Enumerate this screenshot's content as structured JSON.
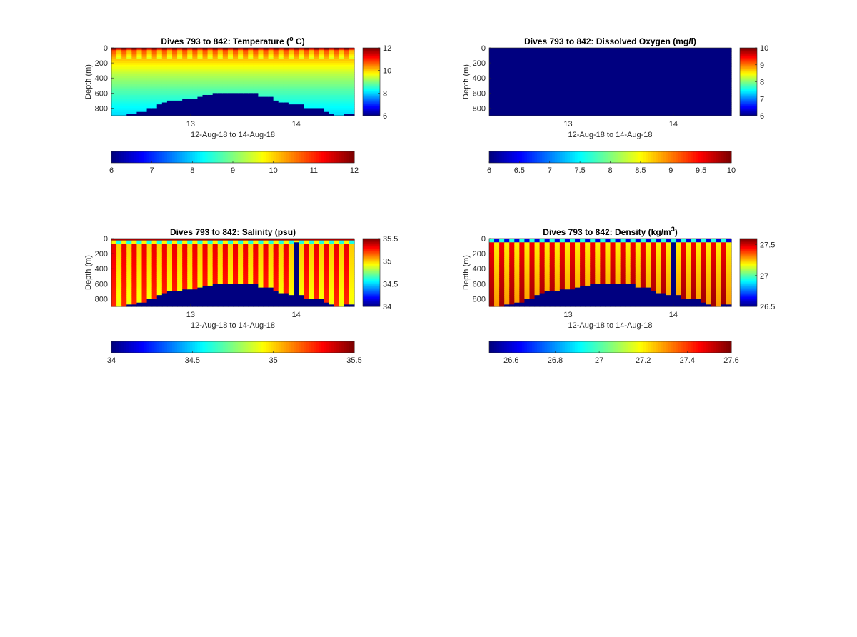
{
  "chart_data": [
    {
      "type": "heatmap",
      "variable": "temperature",
      "title_prefix": "Dives 793 to 842: Temperature (",
      "title_super": "o",
      "title_suffix": " C)",
      "xlabel": "12-Aug-18 to 14-Aug-18",
      "ylabel": "Depth (m)",
      "xlim": [
        12.25,
        14.55
      ],
      "x_ticks": [
        13,
        14
      ],
      "x_tick_labels": [
        "13",
        "14"
      ],
      "ylim": [
        0,
        900
      ],
      "y_ticks": [
        0,
        200,
        400,
        600,
        800
      ],
      "y_tick_labels": [
        "0",
        "200",
        "400",
        "600",
        "800"
      ],
      "clim": [
        6,
        12
      ],
      "side_colorbar_ticks": [
        "6",
        "8",
        "10",
        "12"
      ],
      "bottom_colorbar_ticks": [
        "6",
        "7",
        "8",
        "9",
        "10",
        "11",
        "12"
      ],
      "bottom_depth_m": [
        900,
        900,
        880,
        860,
        850,
        800,
        760,
        720,
        700,
        690,
        680,
        680,
        660,
        620,
        600,
        600,
        600,
        600,
        600,
        600,
        600,
        640,
        660,
        700,
        720,
        740,
        760,
        790,
        800,
        810,
        860,
        880,
        890,
        880,
        870
      ],
      "surface_value": 11.5,
      "deep_value": 8.0
    },
    {
      "type": "heatmap",
      "variable": "oxygen",
      "title_prefix": "Dives 793 to 842: Dissolved Oxygen (mg/l)",
      "title_super": "",
      "title_suffix": "",
      "xlabel": "12-Aug-18 to 14-Aug-18",
      "ylabel": "Depth (m)",
      "xlim": [
        12.25,
        14.55
      ],
      "x_ticks": [
        13,
        14
      ],
      "x_tick_labels": [
        "13",
        "14"
      ],
      "ylim": [
        0,
        900
      ],
      "y_ticks": [
        0,
        200,
        400,
        600,
        800
      ],
      "y_tick_labels": [
        "0",
        "200",
        "400",
        "600",
        "800"
      ],
      "clim": [
        6,
        10
      ],
      "side_colorbar_ticks": [
        "6",
        "7",
        "8",
        "9",
        "10"
      ],
      "bottom_colorbar_ticks": [
        "6",
        "6.5",
        "7",
        "7.5",
        "8",
        "8.5",
        "9",
        "9.5",
        "10"
      ],
      "uniform_value": 6.0
    },
    {
      "type": "heatmap",
      "variable": "salinity",
      "title_prefix": "Dives 793 to 842: Salinity (psu)",
      "title_super": "",
      "title_suffix": "",
      "xlabel": "12-Aug-18 to 14-Aug-18",
      "ylabel": "Depth (m)",
      "xlim": [
        12.25,
        14.55
      ],
      "x_ticks": [
        13,
        14
      ],
      "x_tick_labels": [
        "13",
        "14"
      ],
      "ylim": [
        0,
        900
      ],
      "y_ticks": [
        0,
        200,
        400,
        600,
        800
      ],
      "y_tick_labels": [
        "0",
        "200",
        "400",
        "600",
        "800"
      ],
      "clim": [
        34,
        35.5
      ],
      "side_colorbar_ticks": [
        "34",
        "34.5",
        "35",
        "35.5"
      ],
      "bottom_colorbar_ticks": [
        "34",
        "34.5",
        "35",
        "35.5"
      ],
      "bottom_depth_m": [
        900,
        900,
        880,
        860,
        850,
        800,
        760,
        720,
        700,
        690,
        680,
        680,
        660,
        620,
        600,
        600,
        600,
        600,
        600,
        600,
        600,
        640,
        660,
        700,
        720,
        740,
        760,
        790,
        800,
        810,
        860,
        880,
        890,
        880,
        870
      ],
      "gap_x": 14.0,
      "surface_value": 34.6,
      "deep_value": 35.2
    },
    {
      "type": "heatmap",
      "variable": "density",
      "title_prefix": "Dives 793 to 842: Density (kg/m",
      "title_super": "3",
      "title_suffix": ")",
      "xlabel": "12-Aug-18 to 14-Aug-18",
      "ylabel": "Depth (m)",
      "xlim": [
        12.25,
        14.55
      ],
      "x_ticks": [
        13,
        14
      ],
      "x_tick_labels": [
        "13",
        "14"
      ],
      "ylim": [
        0,
        900
      ],
      "y_ticks": [
        0,
        200,
        400,
        600,
        800
      ],
      "y_tick_labels": [
        "0",
        "200",
        "400",
        "600",
        "800"
      ],
      "clim": [
        26.5,
        27.6
      ],
      "side_colorbar_ticks": [
        "26.5",
        "27",
        "27.5"
      ],
      "bottom_colorbar_ticks": [
        "26.6",
        "26.8",
        "27",
        "27.2",
        "27.4",
        "27.6"
      ],
      "bottom_depth_m": [
        900,
        900,
        880,
        860,
        850,
        800,
        760,
        720,
        700,
        690,
        680,
        680,
        660,
        620,
        600,
        600,
        600,
        600,
        600,
        600,
        600,
        640,
        660,
        700,
        720,
        740,
        760,
        790,
        800,
        810,
        860,
        880,
        890,
        880,
        870
      ],
      "gap_x": 14.0,
      "surface_value": 26.6,
      "deep_value": 27.35
    }
  ]
}
